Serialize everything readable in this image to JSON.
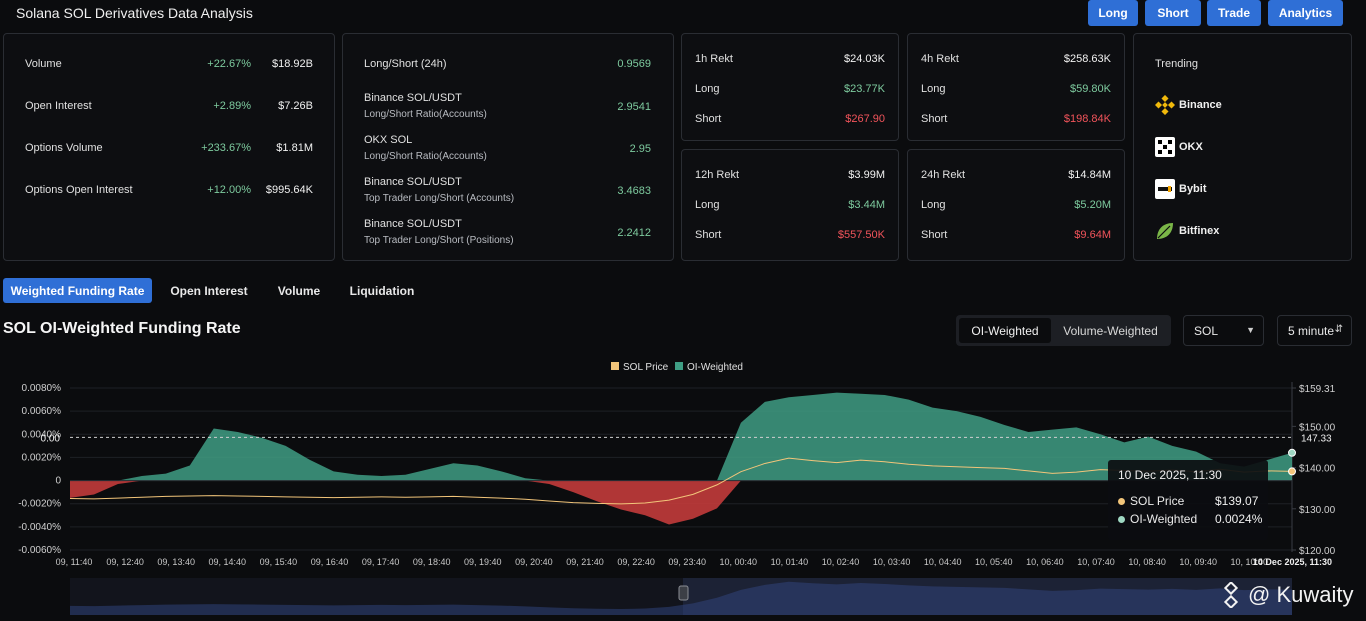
{
  "header": {
    "title": "Solana SOL Derivatives Data Analysis",
    "buttons": [
      "Long",
      "Short",
      "Trade",
      "Analytics"
    ],
    "accent": "#2f6fd6"
  },
  "overview": [
    {
      "label": "Volume",
      "change": "+22.67%",
      "value": "$18.92B"
    },
    {
      "label": "Open Interest",
      "change": "+2.89%",
      "value": "$7.26B"
    },
    {
      "label": "Options Volume",
      "change": "+233.67%",
      "value": "$1.81M"
    },
    {
      "label": "Options Open Interest",
      "change": "+12.00%",
      "value": "$995.64K"
    }
  ],
  "ratios": [
    {
      "label": "Long/Short (24h)",
      "sub": "",
      "value": "0.9569"
    },
    {
      "label": "Binance SOL/USDT",
      "sub": "Long/Short Ratio(Accounts)",
      "value": "2.9541"
    },
    {
      "label": "OKX SOL",
      "sub": "Long/Short Ratio(Accounts)",
      "value": "2.95"
    },
    {
      "label": "Binance SOL/USDT",
      "sub": "Top Trader Long/Short (Accounts)",
      "value": "3.4683"
    },
    {
      "label": "Binance SOL/USDT",
      "sub": "Top Trader Long/Short (Positions)",
      "value": "2.2412"
    }
  ],
  "rekt": {
    "long_label": "Long",
    "short_label": "Short",
    "cards": [
      {
        "title": "1h Rekt",
        "total": "$24.03K",
        "long": "$23.77K",
        "short": "$267.90"
      },
      {
        "title": "4h Rekt",
        "total": "$258.63K",
        "long": "$59.80K",
        "short": "$198.84K"
      },
      {
        "title": "12h Rekt",
        "total": "$3.99M",
        "long": "$3.44M",
        "short": "$557.50K"
      },
      {
        "title": "24h Rekt",
        "total": "$14.84M",
        "long": "$5.20M",
        "short": "$9.64M"
      }
    ]
  },
  "trending": {
    "title": "Trending",
    "items": [
      {
        "name": "Binance",
        "icon": "binance-icon"
      },
      {
        "name": "OKX",
        "icon": "okx-icon"
      },
      {
        "name": "Bybit",
        "icon": "bybit-icon"
      },
      {
        "name": "Bitfinex",
        "icon": "bitfinex-icon"
      }
    ]
  },
  "tabs": [
    "Weighted Funding Rate",
    "Open Interest",
    "Volume",
    "Liquidation"
  ],
  "chart_section": {
    "title": "SOL OI-Weighted Funding Rate",
    "toggle": [
      "OI-Weighted",
      "Volume-Weighted"
    ],
    "asset_select": "SOL",
    "interval_select": "5 minute"
  },
  "tooltip": {
    "time": "10 Dec 2025, 11:30",
    "rows": [
      {
        "label": "SOL Price",
        "value": "$139.07",
        "color": "#f2c57a"
      },
      {
        "label": "OI-Weighted",
        "value": "0.0024%",
        "color": "#9fd8c2"
      }
    ]
  },
  "chart_data": {
    "type": "area",
    "title": "",
    "legend": [
      "SOL Price",
      "OI-Weighted"
    ],
    "legend_position": "top-center",
    "colors": {
      "positive": "#3f9e84",
      "negative": "#c23b3b",
      "price": "#f2c57a"
    },
    "left_axis_ticks": [
      "0.0080%",
      "0.0060%",
      "0.0040%",
      "0.0020%",
      "0",
      "-0.0020%",
      "-0.0040%",
      "-0.0060%"
    ],
    "left_axis_range": [
      -0.006,
      0.008
    ],
    "right_axis_ticks": [
      "$159.31",
      "$150.00",
      "$140.00",
      "$130.00",
      "$120.00"
    ],
    "right_axis_range": [
      120,
      159.31
    ],
    "crosshair": {
      "left_label": "0.00",
      "right_label": "147.33"
    },
    "x_ticks": [
      "09, 11:40",
      "09, 12:40",
      "09, 13:40",
      "09, 14:40",
      "09, 15:40",
      "09, 16:40",
      "09, 17:40",
      "09, 18:40",
      "09, 19:40",
      "09, 20:40",
      "09, 21:40",
      "09, 22:40",
      "09, 23:40",
      "10, 00:40",
      "10, 01:40",
      "10, 02:40",
      "10, 03:40",
      "10, 04:40",
      "10, 05:40",
      "10, 06:40",
      "10, 07:40",
      "10, 08:40",
      "10, 09:40",
      "10, 10:40"
    ],
    "x_last_label": "10 Dec 2025, 11:30",
    "oi_weighted_percent": [
      -0.0015,
      -0.0012,
      -0.0003,
      0.0004,
      0.0006,
      0.0013,
      0.0045,
      0.0042,
      0.0037,
      0.003,
      0.0018,
      0.0008,
      0.0005,
      0.0004,
      0.0005,
      0.001,
      0.0015,
      0.0013,
      0.0008,
      0.0002,
      -0.0003,
      -0.001,
      -0.0018,
      -0.0025,
      -0.003,
      -0.0038,
      -0.0033,
      -0.0024,
      0.005,
      0.0068,
      0.0072,
      0.0074,
      0.0076,
      0.0075,
      0.0074,
      0.007,
      0.0063,
      0.006,
      0.0055,
      0.0048,
      0.0042,
      0.0044,
      0.0046,
      0.004,
      0.0033,
      0.0038,
      0.003,
      0.0025,
      0.0015,
      0.0012,
      0.0018,
      0.0024
    ],
    "sol_price_usd": [
      132.5,
      132.4,
      132.6,
      132.8,
      133.0,
      133.1,
      133.2,
      133.1,
      133.0,
      132.9,
      132.8,
      132.7,
      132.8,
      132.9,
      132.8,
      132.9,
      133.0,
      132.8,
      132.6,
      132.3,
      131.9,
      131.5,
      131.3,
      131.2,
      131.4,
      132.1,
      133.5,
      135.8,
      139.0,
      141.0,
      142.3,
      141.7,
      141.2,
      141.8,
      141.4,
      140.8,
      140.4,
      140.2,
      140.0,
      139.8,
      139.2,
      138.6,
      138.9,
      139.5,
      139.3,
      139.1,
      139.4,
      139.0,
      139.6,
      138.9,
      139.2,
      139.07
    ]
  },
  "watermark": "@ Kuwaity"
}
